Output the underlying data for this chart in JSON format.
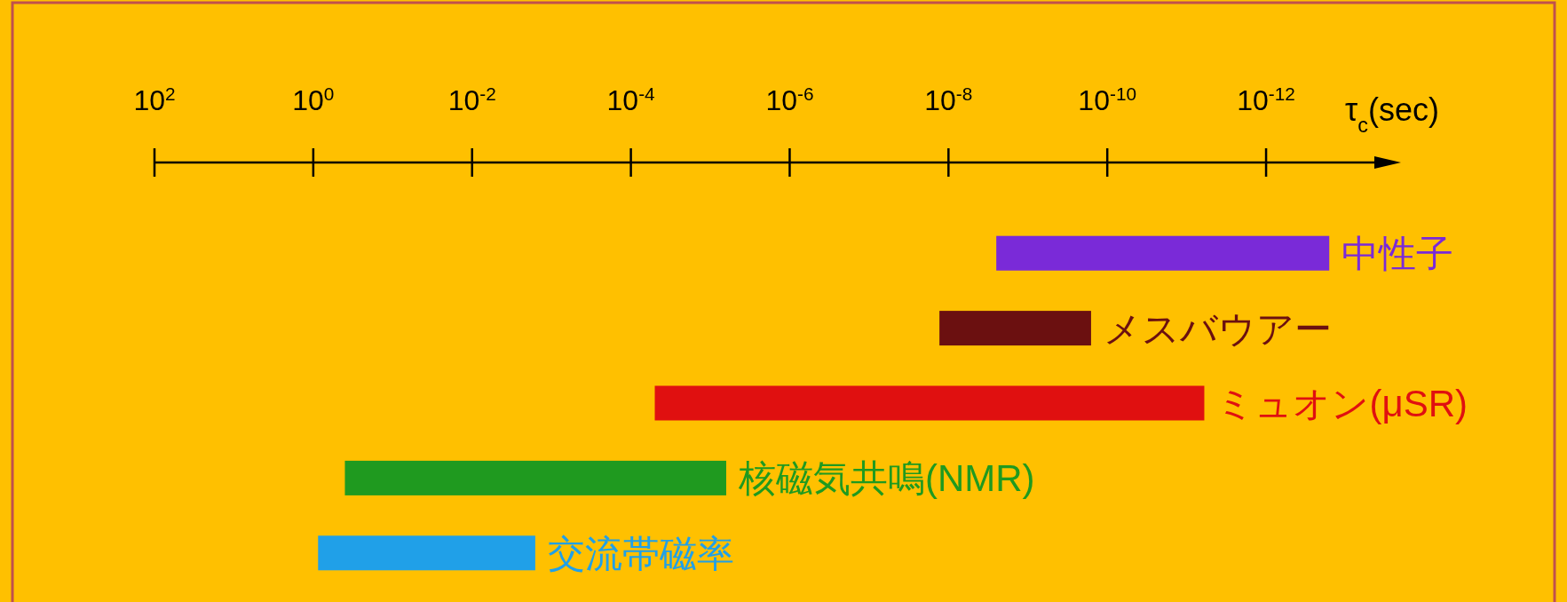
{
  "chart_data": {
    "type": "bar",
    "orientation": "horizontal",
    "log": "x",
    "xlabel": "τ$_{c}$(sec)",
    "xlim": [
      100,
      2e-14
    ],
    "xticks": [
      {
        "value": 100,
        "label": "10$^{2}$"
      },
      {
        "value": 1,
        "label": "10$^{0}$"
      },
      {
        "value": 0.01,
        "label": "10$^{-2}$"
      },
      {
        "value": 0.0001,
        "label": "10$^{-4}$"
      },
      {
        "value": 1e-06,
        "label": "10$^{-6}$"
      },
      {
        "value": 1e-08,
        "label": "10$^{-8}$"
      },
      {
        "value": 1e-10,
        "label": "10$^{-10}$"
      },
      {
        "value": 1e-12,
        "label": "10$^{-12}$"
      }
    ],
    "categories": [
      "中性子",
      "メスバウアー",
      "ミュオン(μSR)",
      "核磁気共鳴(NMR)",
      "交流帯磁率"
    ],
    "base": [
      2.5e-09,
      1.3e-08,
      5e-05,
      0.4,
      0.87
    ],
    "values": [
      -2.49984e-09,
      -1.284e-08,
      -4.9999994e-05,
      -0.3999937,
      -0.8684
    ],
    "colors": [
      "#7a2ad8",
      "#6b1010",
      "#e01010",
      "#1f9a1f",
      "#20a0e8"
    ]
  }
}
